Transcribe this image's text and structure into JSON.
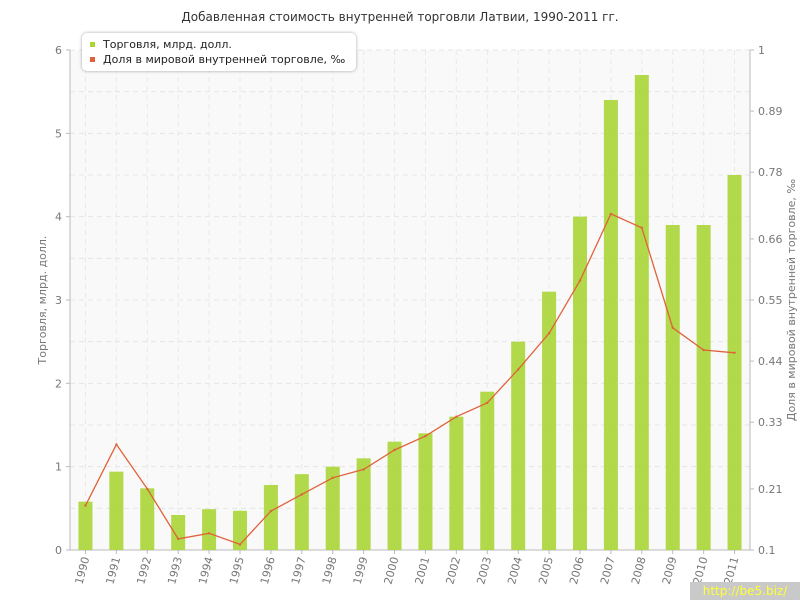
{
  "chart_data": {
    "type": "bar",
    "title": "Добавленная стоимость внутренней торговли Латвии, 1990-2011 гг.",
    "xlabel": "",
    "ylabel": "Торговля, млрд. долл.",
    "y2label": "Доля в мировой внутренней торговле, ‰",
    "categories": [
      "1990",
      "1991",
      "1992",
      "1993",
      "1994",
      "1995",
      "1996",
      "1997",
      "1998",
      "1999",
      "2000",
      "2001",
      "2002",
      "2003",
      "2004",
      "2005",
      "2006",
      "2007",
      "2008",
      "2009",
      "2010",
      "2011"
    ],
    "ylim": [
      0,
      6
    ],
    "y2lim": [
      0.1,
      1
    ],
    "y_ticks": [
      "0",
      "1",
      "2",
      "3",
      "4",
      "5",
      "6"
    ],
    "y2_ticks": [
      "0.1",
      "0.21",
      "0.33",
      "0.44",
      "0.55",
      "0.66",
      "0.78",
      "0.89",
      "1"
    ],
    "grid": true,
    "legend_position": "top-left",
    "series": [
      {
        "name": "Торговля, млрд. долл.",
        "type": "bar",
        "axis": "left",
        "color": "#a9d535",
        "values": [
          0.58,
          0.94,
          0.74,
          0.42,
          0.49,
          0.47,
          0.78,
          0.91,
          1.0,
          1.1,
          1.3,
          1.4,
          1.6,
          1.9,
          2.5,
          3.1,
          4.0,
          5.4,
          5.7,
          3.9,
          3.9,
          4.5
        ]
      },
      {
        "name": "Доля в мировой внутренней торговле, ‰",
        "type": "line",
        "axis": "right",
        "color": "#e0623a",
        "values": [
          0.18,
          0.29,
          0.21,
          0.12,
          0.13,
          0.11,
          0.17,
          0.2,
          0.23,
          0.245,
          0.28,
          0.305,
          0.34,
          0.365,
          0.425,
          0.49,
          0.585,
          0.705,
          0.68,
          0.5,
          0.46,
          0.455
        ]
      }
    ]
  },
  "watermark": "http://be5.biz/"
}
